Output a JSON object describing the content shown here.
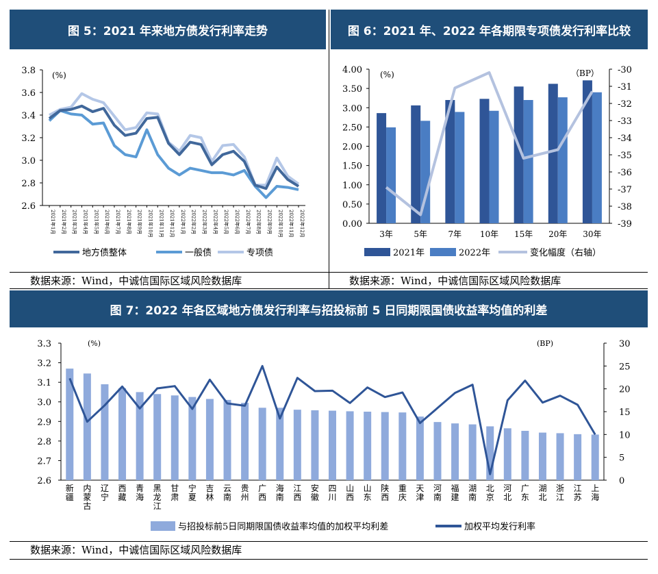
{
  "fig5": {
    "title": "图 5：2021 年来地方债发行利率走势",
    "source": "数据来源：Wind，中诚信国际区域风险数据库",
    "chart_data": {
      "type": "line",
      "unit": "(%)",
      "ylim": [
        2.6,
        3.8
      ],
      "yticks": [
        "3.8",
        "3.6",
        "3.4",
        "3.2",
        "3.0",
        "2.8",
        "2.6"
      ],
      "x": [
        "2021年1月",
        "2021年2月",
        "2021年3月",
        "2021年4月",
        "2021年5月",
        "2021年6月",
        "2021年7月",
        "2021年8月",
        "2021年9月",
        "2021年10月",
        "2021年11月",
        "2021年12月",
        "2022年1月",
        "2022年2月",
        "2022年3月",
        "2022年4月",
        "2022年5月",
        "2022年6月",
        "2022年7月",
        "2022年8月",
        "2022年9月",
        "2022年10月",
        "2022年11月",
        "2022年12月"
      ],
      "series": [
        {
          "name": "地方债整体",
          "color": "#41689b",
          "values": [
            3.37,
            3.44,
            3.45,
            3.48,
            3.43,
            3.46,
            3.31,
            3.22,
            3.24,
            3.37,
            3.38,
            3.15,
            3.05,
            3.16,
            3.14,
            2.96,
            3.05,
            3.08,
            2.99,
            2.78,
            2.75,
            2.94,
            2.83,
            2.77
          ]
        },
        {
          "name": "一般债",
          "color": "#5b9bd5",
          "values": [
            3.35,
            3.44,
            3.41,
            3.4,
            3.32,
            3.33,
            3.13,
            3.05,
            3.03,
            3.27,
            3.05,
            2.93,
            2.87,
            2.93,
            2.91,
            2.89,
            2.89,
            2.87,
            2.91,
            2.77,
            2.67,
            2.77,
            2.76,
            2.74
          ]
        },
        {
          "name": "专项债",
          "color": "#b4c7e7",
          "values": [
            3.4,
            3.45,
            3.47,
            3.59,
            3.54,
            3.51,
            3.39,
            3.27,
            3.29,
            3.42,
            3.41,
            3.16,
            3.08,
            3.22,
            3.2,
            2.99,
            3.13,
            3.14,
            3.03,
            2.78,
            2.78,
            3.02,
            2.86,
            2.79
          ]
        }
      ]
    }
  },
  "fig6": {
    "title": "图 6：2021 年、2022 年各期限专项债发行利率比较",
    "source": "数据来源：Wind，中诚信国际区域风险数据库",
    "chart_data": {
      "type": "bar",
      "unit_left": "(%)",
      "unit_right": "（BP）",
      "ylim": [
        0,
        4
      ],
      "y2lim": [
        -39,
        -30
      ],
      "yticks": [
        "4.00",
        "3.50",
        "3.00",
        "2.50",
        "2.00",
        "1.50",
        "1.00",
        "0.50",
        "0.00"
      ],
      "y2ticks": [
        "-30",
        "-31",
        "-32",
        "-33",
        "-34",
        "-35",
        "-36",
        "-37",
        "-38",
        "-39"
      ],
      "categories": [
        "3年",
        "5年",
        "7年",
        "10年",
        "15年",
        "20年",
        "30年"
      ],
      "series": [
        {
          "name": "2021年",
          "color": "#2f5597",
          "values": [
            2.86,
            3.06,
            3.2,
            3.23,
            3.55,
            3.62,
            3.71
          ]
        },
        {
          "name": "2022年",
          "color": "#4a7dc3",
          "values": [
            2.49,
            2.66,
            2.89,
            2.92,
            3.2,
            3.27,
            3.4
          ]
        },
        {
          "name": "变化幅度（右轴）",
          "color": "#b4c2df",
          "axis": "right",
          "values": [
            -36.9,
            -38.5,
            -31.1,
            -30.2,
            -35.2,
            -34.7,
            -31.3
          ]
        }
      ]
    }
  },
  "fig7": {
    "title": "图 7：2022 年各区域地方债发行利率与招投标前 5 日同期限国债收益率均值的利差",
    "source": "数据来源：Wind，中诚信国际区域风险数据库",
    "chart_data": {
      "type": "bar",
      "unit_left": "(%)",
      "unit_right": "(BP)",
      "ylim": [
        2.6,
        3.3
      ],
      "y2lim": [
        0,
        30
      ],
      "yticks": [
        "3.3",
        "3.2",
        "3.1",
        "3.0",
        "2.9",
        "2.8",
        "2.7",
        "2.6"
      ],
      "y2ticks": [
        "30",
        "25",
        "20",
        "15",
        "10",
        "5",
        "0"
      ],
      "categories": [
        "新疆",
        "内蒙古",
        "辽宁",
        "西藏",
        "青海",
        "黑龙江",
        "甘肃",
        "宁夏",
        "吉林",
        "云南",
        "贵州",
        "广西",
        "海南",
        "江西",
        "安徽",
        "四川",
        "山西",
        "山东",
        "陕西",
        "重庆",
        "天津",
        "河南",
        "福建",
        "湖南",
        "北京",
        "河北",
        "广东",
        "湖北",
        "浙江",
        "江苏",
        "上海"
      ],
      "series": [
        {
          "name": "与招投标前5日同期限国债收益率均值的加权平均利差",
          "color": "#8faadc",
          "axis": "right",
          "values": [
            22.3,
            12.8,
            16.4,
            20.5,
            15.7,
            20.1,
            20.6,
            15.6,
            22.0,
            16.8,
            16.3,
            25.0,
            13.5,
            22.4,
            19.5,
            19.6,
            16.9,
            20.3,
            18.2,
            19.2,
            12.5,
            15.8,
            19.1,
            20.9,
            1.3,
            17.5,
            21.8,
            17.0,
            18.5,
            16.5,
            10.0
          ]
        },
        {
          "name": "加权平均发行利率",
          "color": "#2f5597",
          "values": [
            3.17,
            3.145,
            3.09,
            3.07,
            3.05,
            3.04,
            3.033,
            3.025,
            3.015,
            3.01,
            2.995,
            2.97,
            2.97,
            2.96,
            2.957,
            2.955,
            2.952,
            2.95,
            2.948,
            2.946,
            2.925,
            2.897,
            2.89,
            2.885,
            2.875,
            2.865,
            2.852,
            2.843,
            2.84,
            2.835,
            2.833
          ]
        }
      ]
    }
  }
}
